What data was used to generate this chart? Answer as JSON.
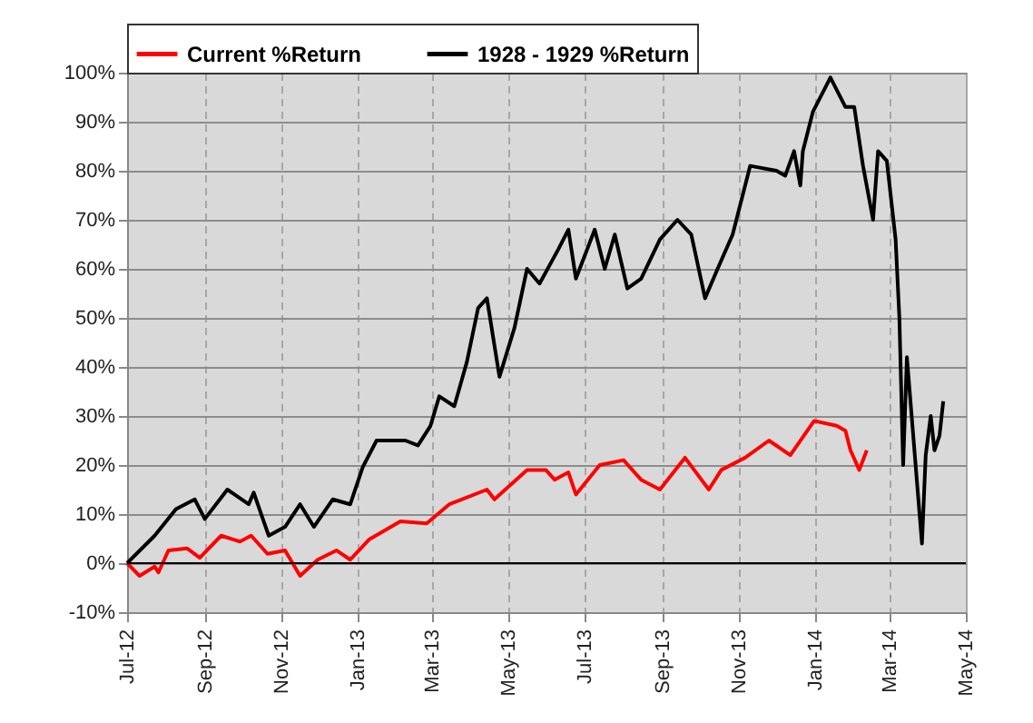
{
  "chart_data": {
    "type": "line",
    "xlim": [
      "2012-07-01",
      "2014-05-01"
    ],
    "xticks": [
      {
        "value": "2012-07-01",
        "label": "Jul-12"
      },
      {
        "value": "2012-09-01",
        "label": "Sep-12"
      },
      {
        "value": "2012-11-01",
        "label": "Nov-12"
      },
      {
        "value": "2013-01-01",
        "label": "Jan-13"
      },
      {
        "value": "2013-03-01",
        "label": "Mar-13"
      },
      {
        "value": "2013-05-01",
        "label": "May-13"
      },
      {
        "value": "2013-07-01",
        "label": "Jul-13"
      },
      {
        "value": "2013-09-01",
        "label": "Sep-13"
      },
      {
        "value": "2013-11-01",
        "label": "Nov-13"
      },
      {
        "value": "2014-01-01",
        "label": "Jan-14"
      },
      {
        "value": "2014-03-01",
        "label": "Mar-14"
      },
      {
        "value": "2014-05-01",
        "label": "May-14"
      }
    ],
    "ylim": [
      -10,
      100
    ],
    "yticks": [
      {
        "value": -10,
        "label": "-10%"
      },
      {
        "value": 0,
        "label": "0%"
      },
      {
        "value": 10,
        "label": "10%"
      },
      {
        "value": 20,
        "label": "20%"
      },
      {
        "value": 30,
        "label": "30%"
      },
      {
        "value": 40,
        "label": "40%"
      },
      {
        "value": 50,
        "label": "50%"
      },
      {
        "value": 60,
        "label": "60%"
      },
      {
        "value": 70,
        "label": "70%"
      },
      {
        "value": 80,
        "label": "80%"
      },
      {
        "value": 90,
        "label": "90%"
      },
      {
        "value": 100,
        "label": "100%"
      }
    ],
    "grid": true,
    "legend": "top",
    "ref_lines": [
      {
        "axis": "y",
        "value": 0,
        "color": "#000000"
      }
    ],
    "series": [
      {
        "name": "Current %Return",
        "color": "#ff0000",
        "x": [
          "2012-07-01",
          "2012-07-11",
          "2012-07-23",
          "2012-07-26",
          "2012-08-03",
          "2012-08-18",
          "2012-08-28",
          "2012-09-14",
          "2012-09-29",
          "2012-10-08",
          "2012-10-21",
          "2012-11-04",
          "2012-11-16",
          "2012-11-30",
          "2012-12-15",
          "2012-12-26",
          "2013-01-10",
          "2013-02-04",
          "2013-02-25",
          "2013-03-15",
          "2013-04-14",
          "2013-04-20",
          "2013-05-16",
          "2013-05-31",
          "2013-06-07",
          "2013-06-18",
          "2013-06-24",
          "2013-07-13",
          "2013-08-01",
          "2013-08-15",
          "2013-08-30",
          "2013-09-19",
          "2013-10-08",
          "2013-10-18",
          "2013-11-06",
          "2013-11-25",
          "2013-12-12",
          "2013-12-31",
          "2014-01-18",
          "2014-01-25",
          "2014-01-29",
          "2014-02-05",
          "2014-02-11"
        ],
        "values": [
          0,
          -2.6,
          -0.7,
          -1.9,
          2.6,
          3,
          1.1,
          5.6,
          4.4,
          5.6,
          1.9,
          2.6,
          -2.6,
          0.7,
          2.6,
          0.7,
          4.8,
          8.5,
          8.1,
          12,
          15,
          13,
          19,
          19,
          17,
          18.5,
          14,
          20,
          21,
          17,
          15,
          21.5,
          15,
          19,
          21.5,
          25,
          22,
          29,
          28,
          27,
          23,
          19,
          23
        ]
      },
      {
        "name": "1928 - 1929 %Return",
        "color": "#000000",
        "x": [
          "2012-07-01",
          "2012-07-23",
          "2012-08-09",
          "2012-08-24",
          "2012-09-01",
          "2012-09-19",
          "2012-10-06",
          "2012-10-10",
          "2012-10-18",
          "2012-10-22",
          "2012-11-04",
          "2012-11-16",
          "2012-11-27",
          "2012-12-12",
          "2012-12-26",
          "2013-01-05",
          "2013-01-16",
          "2013-02-08",
          "2013-02-18",
          "2013-02-28",
          "2013-03-07",
          "2013-03-19",
          "2013-03-29",
          "2013-04-07",
          "2013-04-14",
          "2013-04-24",
          "2013-05-06",
          "2013-05-16",
          "2013-05-26",
          "2013-06-10",
          "2013-06-18",
          "2013-06-24",
          "2013-07-09",
          "2013-07-17",
          "2013-07-25",
          "2013-08-04",
          "2013-08-15",
          "2013-08-30",
          "2013-09-13",
          "2013-09-24",
          "2013-10-05",
          "2013-10-15",
          "2013-10-27",
          "2013-11-10",
          "2013-12-01",
          "2013-12-08",
          "2013-12-15",
          "2013-12-20",
          "2013-12-22",
          "2013-12-30",
          "2014-01-13",
          "2014-01-25",
          "2014-02-01",
          "2014-02-08",
          "2014-02-16",
          "2014-02-20",
          "2014-02-27",
          "2014-03-06",
          "2014-03-09",
          "2014-03-12",
          "2014-03-15",
          "2014-03-27",
          "2014-03-30",
          "2014-04-03",
          "2014-04-06",
          "2014-04-10",
          "2014-04-13"
        ],
        "values": [
          0,
          5.6,
          11,
          13,
          9,
          15,
          12,
          14.4,
          8.5,
          5.6,
          7.4,
          12,
          7.4,
          13,
          12,
          19.6,
          25,
          25,
          24,
          28,
          34,
          32,
          41,
          52,
          54,
          38,
          48,
          60,
          57,
          64,
          68,
          58,
          68,
          60,
          67,
          56,
          58,
          66,
          70,
          67,
          54,
          60,
          67,
          81,
          80,
          79,
          84,
          77,
          84,
          92,
          99,
          93,
          93,
          81,
          70,
          84,
          82,
          66,
          50,
          20,
          42,
          4,
          22,
          30,
          23,
          26,
          33
        ]
      }
    ]
  }
}
